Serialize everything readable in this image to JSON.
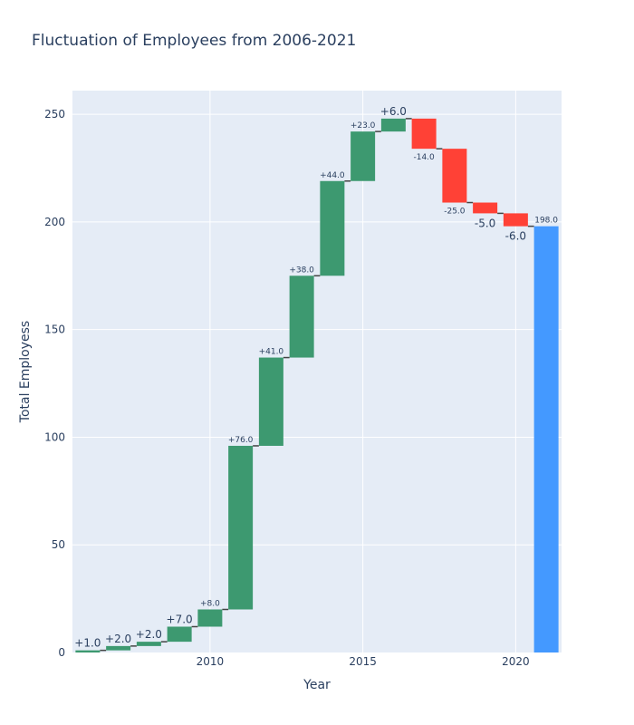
{
  "chart_data": {
    "type": "waterfall",
    "title": "Fluctuation of Employees from 2006-2021",
    "xlabel": "Year",
    "ylabel": "Total Employess",
    "x": [
      2006,
      2007,
      2008,
      2009,
      2010,
      2011,
      2012,
      2013,
      2014,
      2015,
      2016,
      2017,
      2018,
      2019,
      2020,
      2021
    ],
    "measure": [
      "relative",
      "relative",
      "relative",
      "relative",
      "relative",
      "relative",
      "relative",
      "relative",
      "relative",
      "relative",
      "relative",
      "relative",
      "relative",
      "relative",
      "relative",
      "total"
    ],
    "values": [
      1,
      2,
      2,
      7,
      8,
      76,
      41,
      38,
      44,
      23,
      6,
      -14,
      -25,
      -5,
      -6,
      198
    ],
    "labels": [
      "+1.0",
      "+2.0",
      "+2.0",
      "+7.0",
      "+8.0",
      "+76.0",
      "+41.0",
      "+38.0",
      "+44.0",
      "+23.0",
      "+6.0",
      "-14.0",
      "-25.0",
      "-5.0",
      "-6.0",
      "198.0"
    ],
    "xticks": [
      "2010",
      "2015",
      "2020"
    ],
    "yticks": [
      "0",
      "50",
      "100",
      "150",
      "200",
      "250"
    ],
    "ylim": [
      0,
      261
    ],
    "xlim": [
      2005.5,
      2021.5
    ],
    "grid": true,
    "colors": {
      "increasing": "#3d9970",
      "decreasing": "#ff4136",
      "total": "#4499ff",
      "plot_bg": "#e5ecf6",
      "text": "#2a3f5f",
      "connector": "#444444"
    }
  }
}
